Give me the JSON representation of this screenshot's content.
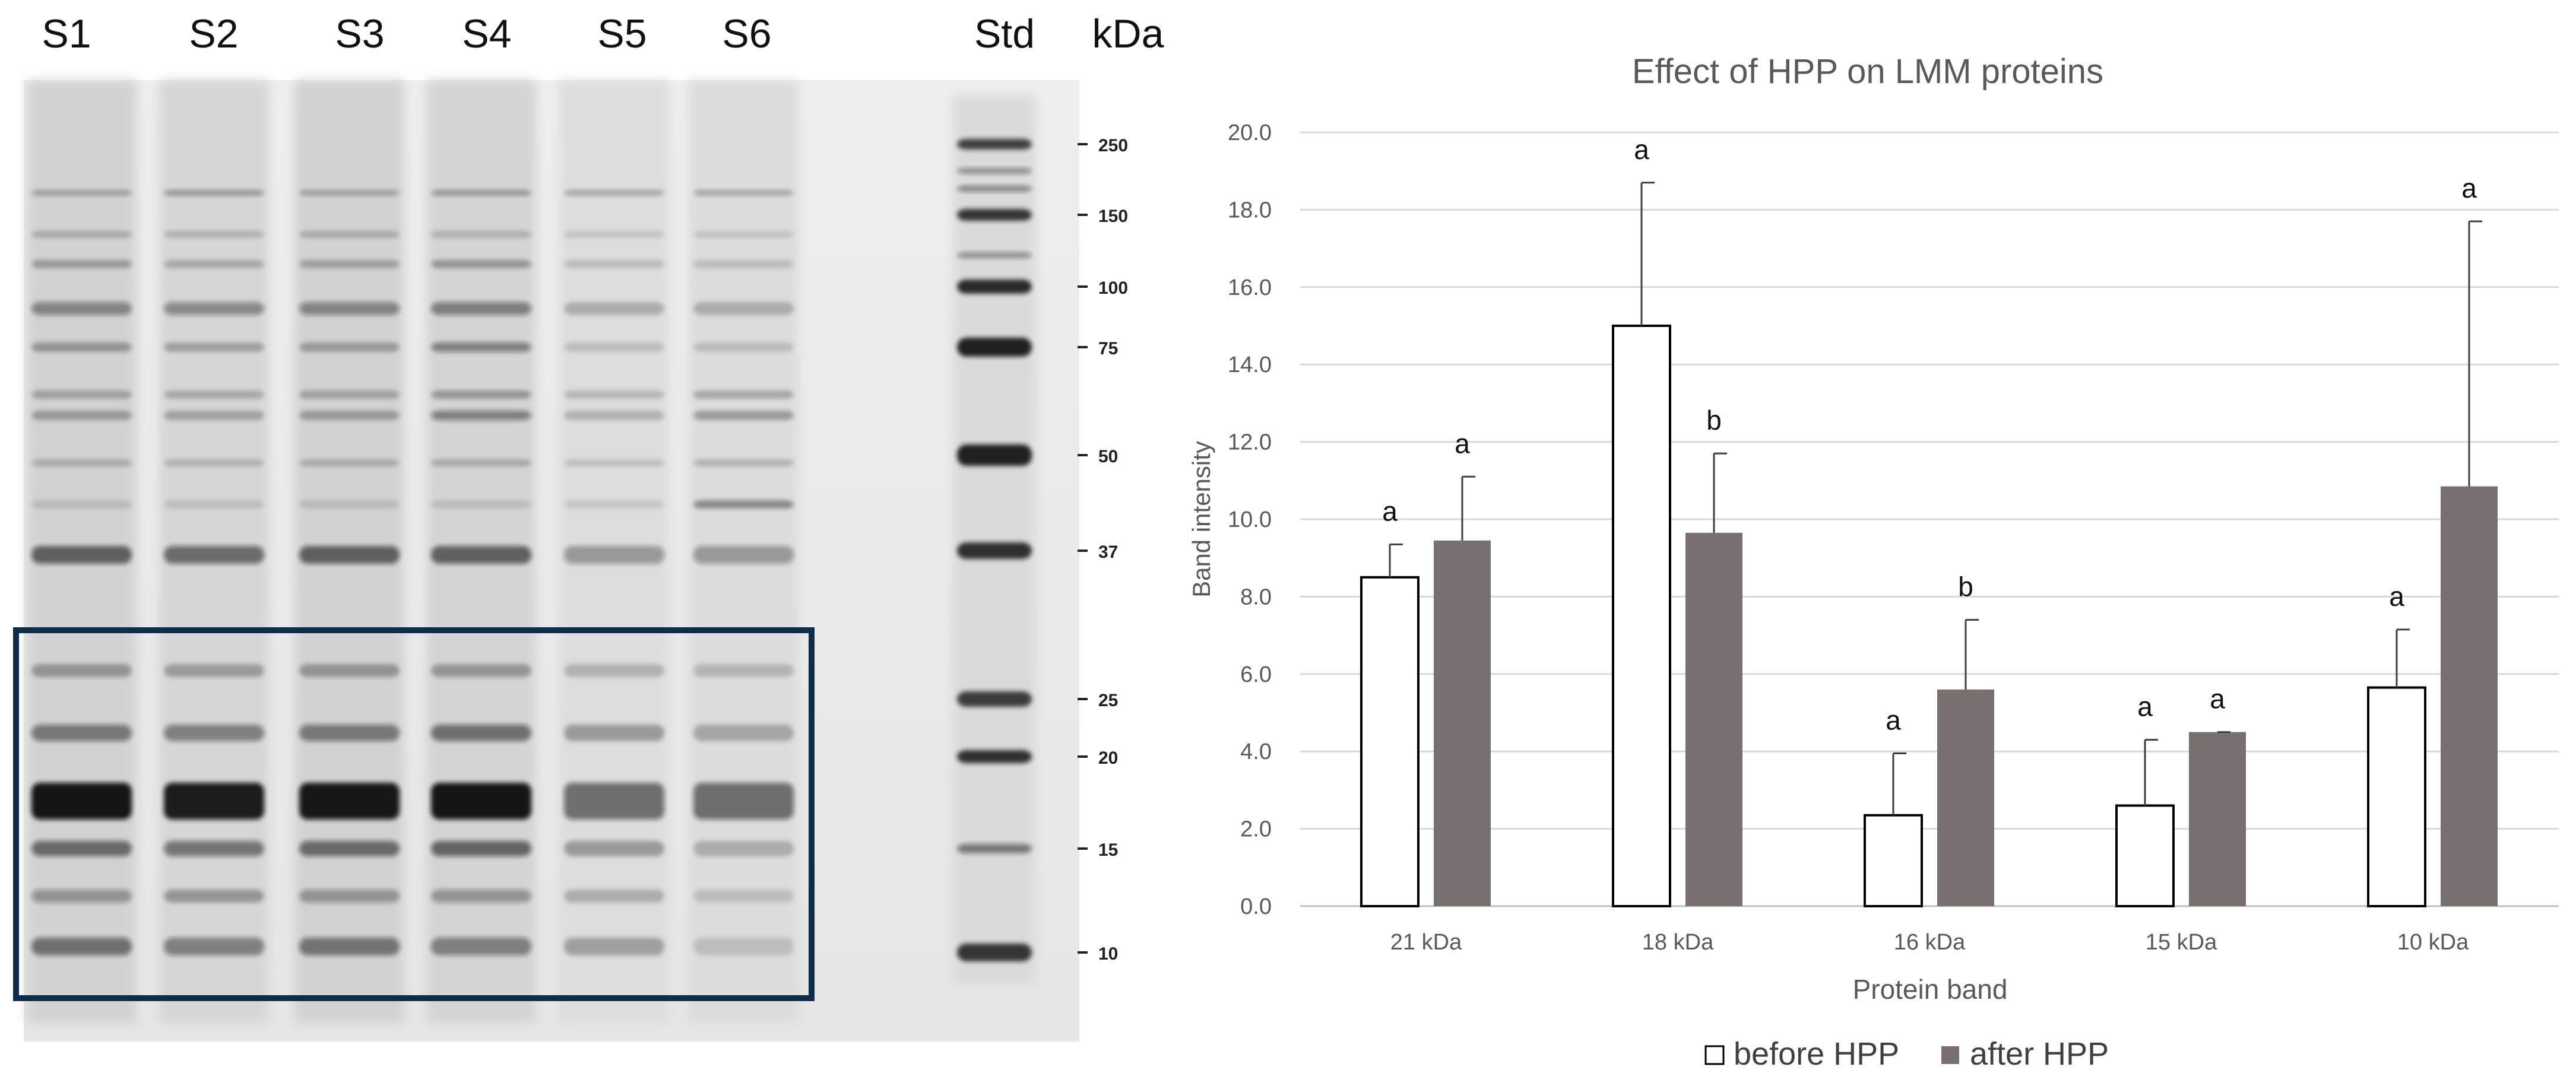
{
  "gel": {
    "lane_labels": [
      "S1",
      "S2",
      "S3",
      "S4",
      "S5",
      "S6",
      "Std"
    ],
    "unit_label": "kDa",
    "markers": [
      "250",
      "150",
      "100",
      "75",
      "50",
      "37",
      "25",
      "20",
      "15",
      "10"
    ]
  },
  "chart_data": {
    "type": "bar",
    "title": "Effect of HPP on LMM proteins",
    "xlabel": "Protein band",
    "ylabel": "Band intensity",
    "ylim": [
      0,
      20
    ],
    "yticks": [
      "0.0",
      "2.0",
      "4.0",
      "6.0",
      "8.0",
      "10.0",
      "12.0",
      "14.0",
      "16.0",
      "18.0",
      "20.0"
    ],
    "grid": true,
    "legend_position": "bottom",
    "categories": [
      "21 kDa",
      "18 kDa",
      "16 kDa",
      "15 kDa",
      "10 kDa"
    ],
    "series": [
      {
        "name": "before HPP",
        "values": [
          8.5,
          15.0,
          2.35,
          2.6,
          5.65
        ],
        "error": [
          0.85,
          3.7,
          1.6,
          1.7,
          1.5
        ],
        "letters": [
          "a",
          "a",
          "a",
          "a",
          "a"
        ],
        "color": "#ffffff"
      },
      {
        "name": "after HPP",
        "values": [
          9.45,
          9.65,
          5.6,
          4.5,
          10.85
        ],
        "error": [
          1.65,
          2.05,
          1.8,
          0.0,
          6.85
        ],
        "letters": [
          "a",
          "b",
          "b",
          "a",
          "a"
        ],
        "color": "#776f70"
      }
    ]
  }
}
